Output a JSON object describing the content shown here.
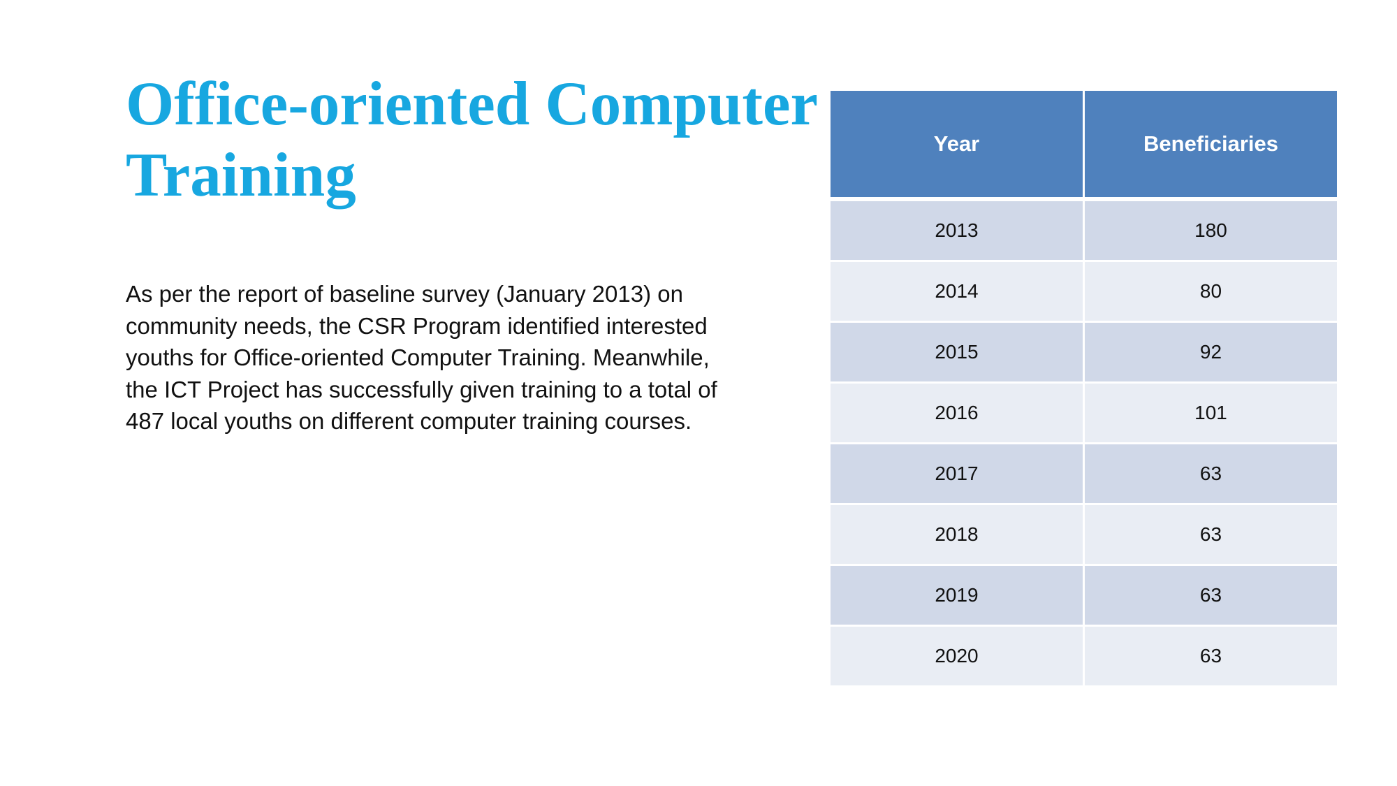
{
  "slide": {
    "title_lines": [
      "Office-oriented Computer",
      "Training"
    ],
    "body_lines": [
      "As per the report of baseline survey (January 2013) on",
      "community needs, the CSR Program identified interested",
      "youths for Office-oriented Computer Training. Meanwhile,",
      "the ICT Project has successfully given training to a total of",
      "487 local youths on different computer training courses."
    ],
    "colors": {
      "title": "#17a7e0",
      "table_header": "#4f81bd",
      "row_odd": "#d0d8e8",
      "row_even": "#e9edf4"
    }
  },
  "table": {
    "headers": [
      "Year",
      "Beneficiaries"
    ],
    "rows": [
      {
        "year": "2013",
        "beneficiaries": "180"
      },
      {
        "year": "2014",
        "beneficiaries": "80"
      },
      {
        "year": "2015",
        "beneficiaries": "92"
      },
      {
        "year": "2016",
        "beneficiaries": "101"
      },
      {
        "year": "2017",
        "beneficiaries": "63"
      },
      {
        "year": "2018",
        "beneficiaries": "63"
      },
      {
        "year": "2019",
        "beneficiaries": "63"
      },
      {
        "year": "2020",
        "beneficiaries": "63"
      }
    ]
  }
}
